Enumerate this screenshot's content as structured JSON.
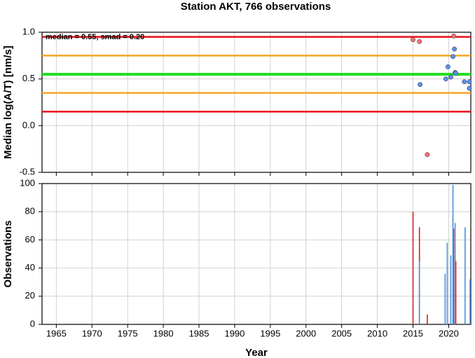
{
  "title": "Station AKT, 766 observations",
  "chart_data": [
    {
      "type": "scatter",
      "ylabel": "Median log(A/T) [nm/s]",
      "annotation": "median = 0.55, smad = 0.20",
      "xlim": [
        1963,
        2023.1
      ],
      "xticks": [
        1965,
        1970,
        1975,
        1980,
        1985,
        1990,
        1995,
        2000,
        2005,
        2010,
        2015,
        2020
      ],
      "ylim": [
        -0.5,
        1
      ],
      "yticks": [
        {
          "value": 1,
          "label": "1.0"
        },
        0.5,
        {
          "value": 0,
          "label": "0.0"
        },
        -0.5
      ],
      "grid": true,
      "reference_lines": [
        {
          "value": 0.95,
          "color": "#e8101a"
        },
        {
          "value": 0.75,
          "color": "#f5a623"
        },
        {
          "value": 0.55,
          "color": "#22e022"
        },
        {
          "value": 0.35,
          "color": "#f5a623"
        },
        {
          "value": 0.15,
          "color": "#e8101a"
        }
      ],
      "series": [
        {
          "color": "#f07070",
          "x": [
            2015.0,
            2015.9,
            2017.0,
            2020.7
          ],
          "values": [
            0.92,
            0.9,
            -0.31,
            0.96
          ]
        },
        {
          "color": "#5b8fe8",
          "x": [
            2016.0,
            2019.6,
            2019.9,
            2020.3,
            2020.6,
            2020.8,
            2020.9,
            2021.0,
            2022.2,
            2022.9,
            2022.9
          ],
          "values": [
            0.44,
            0.5,
            0.63,
            0.52,
            0.74,
            0.82,
            0.57,
            0.56,
            0.47,
            0.47,
            0.4
          ]
        }
      ]
    },
    {
      "type": "bar",
      "xlabel": "Year",
      "ylabel": "Observations",
      "xlim": [
        1963,
        2023.1
      ],
      "xticks": [
        1965,
        1970,
        1975,
        1980,
        1985,
        1990,
        1995,
        2000,
        2005,
        2010,
        2015,
        2020
      ],
      "ylim": [
        0,
        100
      ],
      "yticks": [
        0,
        20,
        40,
        60,
        80,
        100
      ],
      "grid": true,
      "series": [
        {
          "color": "#d42020",
          "x": [
            2015.0,
            2015.9,
            2017.0,
            2020.7,
            2021.0
          ],
          "values": [
            80,
            69,
            7,
            68,
            45
          ]
        },
        {
          "color": "#4a90e0",
          "x": [
            2015.9,
            2019.5,
            2019.8,
            2020.3,
            2020.6,
            2020.9,
            2022.3,
            2023.0
          ],
          "values": [
            45,
            36,
            58,
            49,
            99,
            72,
            69,
            32
          ]
        }
      ]
    }
  ]
}
